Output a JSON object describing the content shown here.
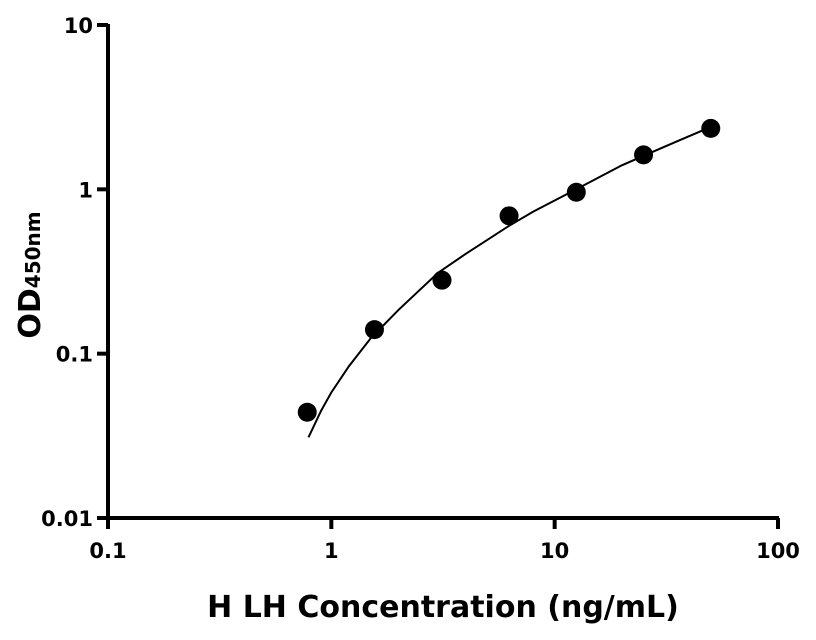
{
  "chart_data": {
    "type": "scatter",
    "title": "",
    "xlabel": "H LH Concentration (ng/mL)",
    "ylabel": "OD",
    "ylabel_subscript": "450nm",
    "x_scale": "log",
    "y_scale": "log",
    "xlim": [
      0.1,
      100
    ],
    "ylim": [
      0.01,
      10
    ],
    "x_ticks": [
      "0.1",
      "1",
      "10",
      "100"
    ],
    "y_ticks": [
      "10",
      "1",
      "0.1",
      "0.01"
    ],
    "grid": false,
    "legend": "none",
    "point_color": "#000000",
    "series": [
      {
        "points": [
          {
            "x": 0.78,
            "y": 0.044
          },
          {
            "x": 1.56,
            "y": 0.14
          },
          {
            "x": 3.13,
            "y": 0.28
          },
          {
            "x": 6.25,
            "y": 0.69
          },
          {
            "x": 12.5,
            "y": 0.96
          },
          {
            "x": 25,
            "y": 1.62
          },
          {
            "x": 50,
            "y": 2.35
          }
        ]
      }
    ],
    "fit_curve": [
      {
        "x": 0.79,
        "y": 0.031
      },
      {
        "x": 0.9,
        "y": 0.045
      },
      {
        "x": 1.0,
        "y": 0.058
      },
      {
        "x": 1.2,
        "y": 0.084
      },
      {
        "x": 1.5,
        "y": 0.124
      },
      {
        "x": 2.0,
        "y": 0.185
      },
      {
        "x": 3.0,
        "y": 0.31
      },
      {
        "x": 4.0,
        "y": 0.405
      },
      {
        "x": 6.25,
        "y": 0.6
      },
      {
        "x": 8.0,
        "y": 0.73
      },
      {
        "x": 12.5,
        "y": 1.0
      },
      {
        "x": 20.0,
        "y": 1.4
      },
      {
        "x": 25.0,
        "y": 1.6
      },
      {
        "x": 35.0,
        "y": 1.95
      },
      {
        "x": 50.0,
        "y": 2.4
      }
    ]
  }
}
